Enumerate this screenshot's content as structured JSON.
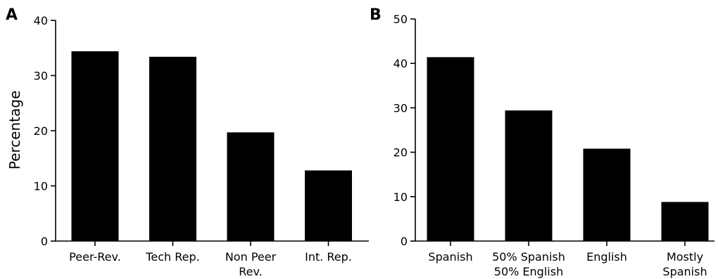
{
  "chart_data": [
    {
      "type": "bar",
      "panel_label": "A",
      "categories": [
        "Peer-Rev.",
        "Tech Rep.",
        "Non Peer Rev.",
        "Int. Rep."
      ],
      "category_lines": [
        [
          "Peer-Rev."
        ],
        [
          "Tech Rep."
        ],
        [
          "Non Peer",
          "Rev."
        ],
        [
          "Int. Rep."
        ]
      ],
      "values": [
        34.4,
        33.4,
        19.7,
        12.8
      ],
      "ylabel": "Percentage",
      "xlabel": "",
      "ylim": [
        0,
        40
      ],
      "yticks": [
        0,
        10,
        20,
        30,
        40
      ],
      "bar_color": "#000000",
      "grid": false
    },
    {
      "type": "bar",
      "panel_label": "B",
      "categories": [
        "Spanish",
        "50% Spanish 50% English",
        "English",
        "Mostly Spanish"
      ],
      "category_lines": [
        [
          "Spanish"
        ],
        [
          "50% Spanish",
          "50% English"
        ],
        [
          "English"
        ],
        [
          "Mostly",
          "Spanish"
        ]
      ],
      "values": [
        41.4,
        29.4,
        20.8,
        8.8
      ],
      "ylabel": "",
      "xlabel": "",
      "ylim": [
        0,
        50
      ],
      "yticks": [
        0,
        10,
        20,
        30,
        40,
        50
      ],
      "bar_color": "#000000",
      "grid": false
    }
  ]
}
